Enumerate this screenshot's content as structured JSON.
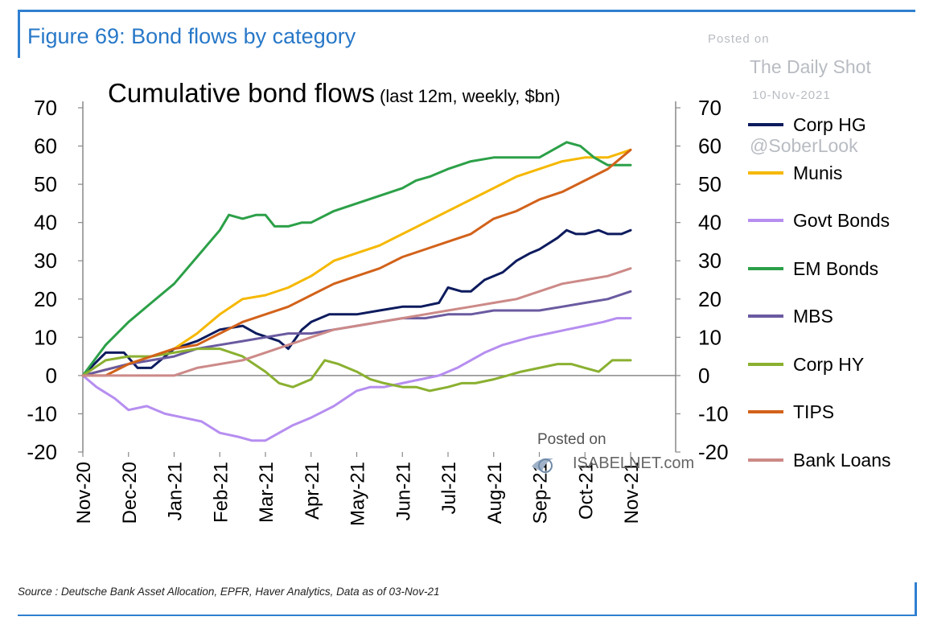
{
  "figure_title": "Figure 69: Bond flows by category",
  "watermark_dailyshot": {
    "posted": "Posted on",
    "site": "The Daily Shot",
    "date": "10-Nov-2021",
    "handle": "@SoberLook"
  },
  "watermark_isabelnet": {
    "posted": "Posted on",
    "site": "ISABELNET.com"
  },
  "source": "Source : Deutsche Bank Asset Allocation, EPFR, Haver Analytics, Data as of 03-Nov-21",
  "colors": {
    "frame": "#2f7fd0",
    "figure_title": "#2878c8"
  },
  "chart_data": {
    "type": "line",
    "title": "Cumulative bond flows",
    "subtitle": "(last 12m, weekly, $bn)",
    "xlabel": "",
    "ylabel": "",
    "ylim": [
      -20,
      70
    ],
    "yticks": [
      70,
      60,
      50,
      40,
      30,
      20,
      10,
      0,
      -10,
      -20
    ],
    "ytick_labels": [
      "70",
      "60",
      "50",
      "40",
      "30",
      "20",
      "10",
      "0",
      "-10",
      "-20"
    ],
    "xticks": [
      "Nov-20",
      "Dec-20",
      "Jan-21",
      "Feb-21",
      "Mar-21",
      "Apr-21",
      "May-21",
      "Jun-21",
      "Jul-21",
      "Aug-21",
      "Sep-21",
      "Oct-21",
      "Nov-21"
    ],
    "grid": false,
    "legend_position": "right",
    "x_months_range": [
      0,
      12
    ],
    "series": [
      {
        "name": "Corp HG",
        "color": "#0d1b5e",
        "x": [
          0,
          0.5,
          0.9,
          1.2,
          1.5,
          2.0,
          2.5,
          3.0,
          3.5,
          3.8,
          4.3,
          4.5,
          4.8,
          5.0,
          5.4,
          5.6,
          6.0,
          6.5,
          7.0,
          7.4,
          7.8,
          8.0,
          8.3,
          8.5,
          8.8,
          9.2,
          9.5,
          9.8,
          10.0,
          10.4,
          10.6,
          10.8,
          11.0,
          11.3,
          11.5,
          11.8,
          12.0
        ],
        "y": [
          0,
          6,
          6,
          2,
          2,
          7,
          9,
          12,
          13,
          11,
          9,
          7,
          12,
          14,
          16,
          16,
          16,
          17,
          18,
          18,
          19,
          23,
          22,
          22,
          25,
          27,
          30,
          32,
          33,
          36,
          38,
          37,
          37,
          38,
          37,
          37,
          38
        ]
      },
      {
        "name": "Munis",
        "color": "#f5b800",
        "x": [
          0,
          1,
          2,
          2.5,
          3,
          3.5,
          4,
          4.5,
          5,
          5.5,
          6,
          6.5,
          7,
          7.5,
          8,
          8.5,
          9,
          9.5,
          10,
          10.5,
          11,
          11.5,
          12
        ],
        "y": [
          0,
          3,
          7,
          11,
          16,
          20,
          21,
          23,
          26,
          30,
          32,
          34,
          37,
          40,
          43,
          46,
          49,
          52,
          54,
          56,
          57,
          57,
          59
        ]
      },
      {
        "name": "Govt Bonds",
        "color": "#b68ef0",
        "x": [
          0,
          0.3,
          0.7,
          1.0,
          1.4,
          1.8,
          2.2,
          2.6,
          3.0,
          3.4,
          3.7,
          4.0,
          4.3,
          4.6,
          5.0,
          5.5,
          6.0,
          6.3,
          6.6,
          7.0,
          7.4,
          7.8,
          8.2,
          8.5,
          8.8,
          9.2,
          9.5,
          9.8,
          10.2,
          10.6,
          11.0,
          11.4,
          11.7,
          12.0
        ],
        "y": [
          0,
          -3,
          -6,
          -9,
          -8,
          -10,
          -11,
          -12,
          -15,
          -16,
          -17,
          -17,
          -15,
          -13,
          -11,
          -8,
          -4,
          -3,
          -3,
          -2,
          -1,
          0,
          2,
          4,
          6,
          8,
          9,
          10,
          11,
          12,
          13,
          14,
          15,
          15
        ]
      },
      {
        "name": "EM Bonds",
        "color": "#2ca048",
        "x": [
          0,
          0.5,
          1,
          1.5,
          2,
          2.5,
          3,
          3.2,
          3.5,
          3.8,
          4.0,
          4.2,
          4.5,
          4.8,
          5.0,
          5.5,
          6.0,
          6.5,
          7.0,
          7.3,
          7.6,
          8.0,
          8.5,
          9.0,
          9.5,
          9.8,
          10.0,
          10.3,
          10.6,
          10.9,
          11.2,
          11.5,
          11.8,
          12.0
        ],
        "y": [
          0,
          8,
          14,
          19,
          24,
          31,
          38,
          42,
          41,
          42,
          42,
          39,
          39,
          40,
          40,
          43,
          45,
          47,
          49,
          51,
          52,
          54,
          56,
          57,
          57,
          57,
          57,
          59,
          61,
          60,
          57,
          55,
          55,
          55
        ]
      },
      {
        "name": "MBS",
        "color": "#6a5aa0",
        "x": [
          0,
          1,
          2,
          2.5,
          3,
          3.5,
          4,
          4.5,
          5,
          5.5,
          6,
          6.5,
          7,
          7.5,
          8,
          8.5,
          9,
          9.5,
          10,
          10.5,
          11,
          11.5,
          12
        ],
        "y": [
          0,
          3,
          5,
          7,
          8,
          9,
          10,
          11,
          11,
          12,
          13,
          14,
          15,
          15,
          16,
          16,
          17,
          17,
          17,
          18,
          19,
          20,
          22
        ]
      },
      {
        "name": "Corp HY",
        "color": "#8ab030",
        "x": [
          0,
          0.5,
          1,
          1.5,
          2,
          2.5,
          3,
          3.5,
          4,
          4.3,
          4.6,
          5.0,
          5.3,
          5.6,
          6.0,
          6.3,
          6.6,
          7.0,
          7.3,
          7.6,
          8.0,
          8.3,
          8.6,
          9.0,
          9.3,
          9.6,
          10.0,
          10.4,
          10.7,
          11.0,
          11.3,
          11.6,
          12.0
        ],
        "y": [
          0,
          4,
          5,
          5,
          6,
          7,
          7,
          5,
          1,
          -2,
          -3,
          -1,
          4,
          3,
          1,
          -1,
          -2,
          -3,
          -3,
          -4,
          -3,
          -2,
          -2,
          -1,
          0,
          1,
          2,
          3,
          3,
          2,
          1,
          4,
          4
        ]
      },
      {
        "name": "TIPS",
        "color": "#d2621a",
        "x": [
          0,
          0.5,
          1,
          1.5,
          2,
          2.5,
          3,
          3.5,
          4,
          4.5,
          5,
          5.5,
          6,
          6.5,
          7,
          7.5,
          8,
          8.5,
          9,
          9.5,
          10,
          10.5,
          11,
          11.5,
          12
        ],
        "y": [
          0,
          0,
          3,
          5,
          7,
          8,
          11,
          14,
          16,
          18,
          21,
          24,
          26,
          28,
          31,
          33,
          35,
          37,
          41,
          43,
          46,
          48,
          51,
          54,
          59
        ]
      },
      {
        "name": "Bank Loans",
        "color": "#cc8a88",
        "x": [
          0,
          1,
          2,
          2.5,
          3,
          3.5,
          4,
          4.5,
          5,
          5.5,
          6,
          6.5,
          7,
          7.5,
          8,
          8.5,
          9,
          9.5,
          10,
          10.5,
          11,
          11.5,
          12
        ],
        "y": [
          0,
          0,
          0,
          2,
          3,
          4,
          6,
          8,
          10,
          12,
          13,
          14,
          15,
          16,
          17,
          18,
          19,
          20,
          22,
          24,
          25,
          26,
          28
        ]
      }
    ]
  }
}
